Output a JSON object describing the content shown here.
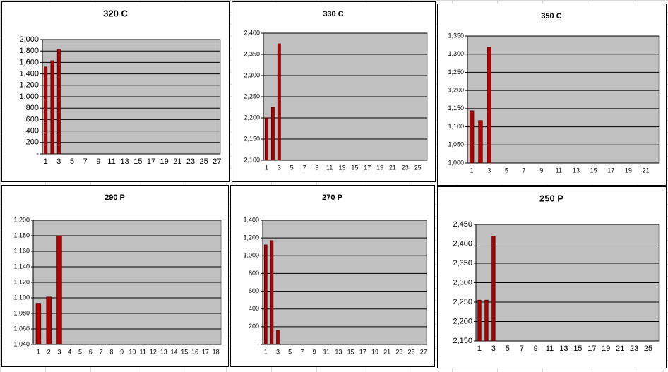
{
  "chart_data": [
    {
      "type": "bar",
      "title": "320 C",
      "color": "#b00000",
      "grid": true,
      "categories": [
        1,
        null,
        3,
        null,
        5,
        null,
        7,
        null,
        9,
        null,
        11,
        null,
        13,
        null,
        15,
        null,
        17,
        null,
        19,
        null,
        21,
        null,
        23,
        null,
        25,
        null,
        27
      ],
      "values": [
        1520,
        1630,
        1830,
        null,
        null,
        null,
        null,
        null,
        null,
        null,
        null,
        null,
        null,
        null,
        null,
        null,
        null,
        null,
        null,
        null,
        null,
        null,
        null,
        null,
        null,
        null,
        null
      ],
      "ylim": [
        0,
        2000
      ],
      "yticks": [
        {
          "value": 0,
          "label": "-"
        },
        200,
        400,
        600,
        800,
        {
          "value": 1000,
          "label": "1,000"
        },
        {
          "value": 1200,
          "label": "1,200"
        },
        {
          "value": 1400,
          "label": "1,400"
        },
        {
          "value": 1600,
          "label": "1,600"
        },
        {
          "value": 1800,
          "label": "1,800"
        },
        {
          "value": 2000,
          "label": "2,000"
        }
      ]
    },
    {
      "type": "bar",
      "title": "330 C",
      "color": "#b00000",
      "grid": true,
      "categories": [
        1,
        null,
        3,
        null,
        5,
        null,
        7,
        null,
        9,
        null,
        11,
        null,
        13,
        null,
        15,
        null,
        17,
        null,
        19,
        null,
        21,
        null,
        23,
        null,
        25,
        null
      ],
      "values": [
        2200,
        2225,
        2375,
        null,
        null,
        null,
        null,
        null,
        null,
        null,
        null,
        null,
        null,
        null,
        null,
        null,
        null,
        null,
        null,
        null,
        null,
        null,
        null,
        null,
        null,
        null
      ],
      "ylim": [
        2100,
        2400
      ],
      "yticks": [
        {
          "value": 2100,
          "label": "2,100"
        },
        {
          "value": 2150,
          "label": "2,150"
        },
        {
          "value": 2200,
          "label": "2,200"
        },
        {
          "value": 2250,
          "label": "2,250"
        },
        {
          "value": 2300,
          "label": "2,300"
        },
        {
          "value": 2350,
          "label": "2,350"
        },
        {
          "value": 2400,
          "label": "2,400"
        }
      ]
    },
    {
      "type": "bar",
      "title": "350 C",
      "color": "#b00000",
      "grid": true,
      "categories": [
        1,
        null,
        3,
        null,
        5,
        null,
        7,
        null,
        9,
        null,
        11,
        null,
        13,
        null,
        15,
        null,
        17,
        null,
        19,
        null,
        21,
        null
      ],
      "values": [
        1144,
        1117,
        1319,
        null,
        null,
        null,
        null,
        null,
        null,
        null,
        null,
        null,
        null,
        null,
        null,
        null,
        null,
        null,
        null,
        null,
        null,
        null
      ],
      "ylim": [
        1000,
        1350
      ],
      "yticks": [
        {
          "value": 1000,
          "label": "1,000"
        },
        {
          "value": 1050,
          "label": "1,050"
        },
        {
          "value": 1100,
          "label": "1,100"
        },
        {
          "value": 1150,
          "label": "1,150"
        },
        {
          "value": 1200,
          "label": "1,200"
        },
        {
          "value": 1250,
          "label": "1,250"
        },
        {
          "value": 1300,
          "label": "1,300"
        },
        {
          "value": 1350,
          "label": "1,350"
        }
      ]
    },
    {
      "type": "bar",
      "title": "290 P",
      "color": "#b00000",
      "grid": true,
      "categories": [
        1,
        2,
        3,
        4,
        5,
        6,
        7,
        8,
        9,
        10,
        11,
        12,
        13,
        14,
        15,
        16,
        17,
        18
      ],
      "values": [
        1093,
        1101,
        1180,
        null,
        null,
        null,
        null,
        null,
        null,
        null,
        null,
        null,
        null,
        null,
        null,
        null,
        null,
        null
      ],
      "ylim": [
        1040,
        1200
      ],
      "yticks": [
        {
          "value": 1040,
          "label": "1,040"
        },
        {
          "value": 1060,
          "label": "1,060"
        },
        {
          "value": 1080,
          "label": "1,080"
        },
        {
          "value": 1100,
          "label": "1,100"
        },
        {
          "value": 1120,
          "label": "1,120"
        },
        {
          "value": 1140,
          "label": "1,140"
        },
        {
          "value": 1160,
          "label": "1,160"
        },
        {
          "value": 1180,
          "label": "1,180"
        },
        {
          "value": 1200,
          "label": "1,200"
        }
      ]
    },
    {
      "type": "bar",
      "title": "270 P",
      "color": "#b00000",
      "grid": true,
      "categories": [
        1,
        null,
        3,
        null,
        5,
        null,
        7,
        null,
        9,
        null,
        11,
        null,
        13,
        null,
        15,
        null,
        17,
        null,
        19,
        null,
        21,
        null,
        23,
        null,
        25,
        null,
        27
      ],
      "values": [
        1122,
        1170,
        159,
        null,
        null,
        null,
        null,
        null,
        null,
        null,
        null,
        null,
        null,
        null,
        null,
        null,
        null,
        null,
        null,
        null,
        null,
        null,
        null,
        null,
        null,
        null,
        null
      ],
      "ylim": [
        0,
        1400
      ],
      "yticks": [
        {
          "value": 0,
          "label": "-"
        },
        200,
        400,
        600,
        800,
        {
          "value": 1000,
          "label": "1,000"
        },
        {
          "value": 1200,
          "label": "1,200"
        },
        {
          "value": 1400,
          "label": "1,400"
        }
      ]
    },
    {
      "type": "bar",
      "title": "250 P",
      "color": "#b00000",
      "grid": true,
      "categories": [
        1,
        null,
        3,
        null,
        5,
        null,
        7,
        null,
        9,
        null,
        11,
        null,
        13,
        null,
        15,
        null,
        17,
        null,
        19,
        null,
        21,
        null,
        23,
        null,
        25,
        null
      ],
      "values": [
        2255,
        2255,
        2420,
        null,
        null,
        null,
        null,
        null,
        null,
        null,
        null,
        null,
        null,
        null,
        null,
        null,
        null,
        null,
        null,
        null,
        null,
        null,
        null,
        null,
        null,
        null
      ],
      "ylim": [
        2150,
        2450
      ],
      "yticks": [
        {
          "value": 2150,
          "label": "2,150"
        },
        {
          "value": 2200,
          "label": "2,200"
        },
        {
          "value": 2250,
          "label": "2,250"
        },
        {
          "value": 2300,
          "label": "2,300"
        },
        {
          "value": 2350,
          "label": "2,350"
        },
        {
          "value": 2400,
          "label": "2,400"
        },
        {
          "value": 2450,
          "label": "2,450"
        }
      ]
    }
  ]
}
